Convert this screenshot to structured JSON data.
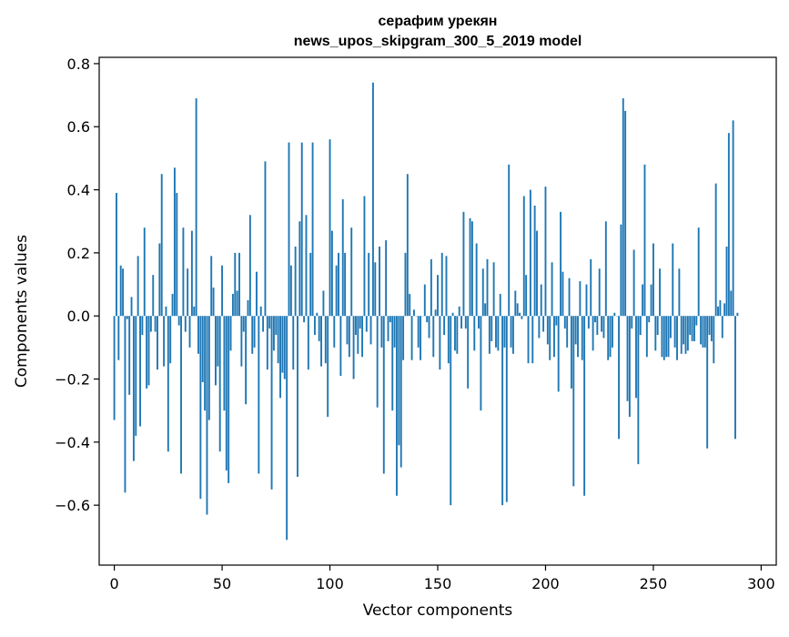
{
  "chart_data": {
    "type": "bar",
    "title_line1": "серафим урекян",
    "title_line2": "news_upos_skipgram_300_5_2019 model",
    "xlabel": "Vector components",
    "ylabel": "Components values",
    "xlim": [
      -7,
      307
    ],
    "ylim": [
      -0.79,
      0.82
    ],
    "x_ticks": [
      0,
      50,
      100,
      150,
      200,
      250,
      300
    ],
    "x_tick_labels": [
      "0",
      "50",
      "100",
      "150",
      "200",
      "250",
      "300"
    ],
    "y_ticks": [
      -0.6,
      -0.4,
      -0.2,
      0.0,
      0.2,
      0.4,
      0.6,
      0.8
    ],
    "y_tick_labels": [
      "−0.6",
      "−0.4",
      "−0.2",
      "0.0",
      "0.2",
      "0.4",
      "0.6",
      "0.8"
    ],
    "bar_color": "#1f77b4",
    "series": [
      {
        "name": "components",
        "values": [
          -0.33,
          0.39,
          -0.14,
          0.16,
          0.15,
          -0.56,
          -0.01,
          -0.25,
          0.06,
          -0.46,
          -0.38,
          0.19,
          -0.35,
          -0.06,
          0.28,
          -0.23,
          -0.22,
          -0.05,
          0.13,
          -0.05,
          -0.17,
          0.23,
          0.45,
          -0.16,
          0.03,
          -0.43,
          -0.15,
          0.07,
          0.47,
          0.39,
          -0.03,
          -0.5,
          0.28,
          -0.05,
          0.15,
          -0.1,
          0.27,
          0.03,
          0.69,
          -0.12,
          -0.58,
          -0.21,
          -0.3,
          -0.63,
          -0.33,
          0.19,
          0.09,
          -0.22,
          -0.16,
          -0.43,
          0.16,
          -0.3,
          -0.49,
          -0.53,
          -0.11,
          0.07,
          0.2,
          0.08,
          0.2,
          -0.16,
          -0.05,
          -0.28,
          0.05,
          0.32,
          -0.12,
          -0.1,
          0.14,
          -0.5,
          0.03,
          -0.05,
          0.49,
          -0.17,
          -0.04,
          -0.55,
          -0.11,
          -0.06,
          -0.15,
          -0.26,
          -0.18,
          -0.2,
          -0.71,
          0.55,
          0.16,
          -0.17,
          0.22,
          -0.51,
          0.3,
          0.55,
          -0.02,
          0.32,
          -0.17,
          0.2,
          0.55,
          -0.06,
          0.01,
          -0.08,
          -0.16,
          0.08,
          -0.15,
          -0.32,
          0.56,
          0.27,
          -0.1,
          0.16,
          0.2,
          -0.19,
          0.37,
          0.2,
          -0.09,
          -0.13,
          0.28,
          -0.2,
          -0.06,
          -0.12,
          -0.04,
          -0.13,
          0.38,
          -0.05,
          0.2,
          -0.09,
          0.74,
          0.17,
          -0.29,
          0.22,
          -0.1,
          -0.5,
          0.24,
          -0.08,
          -0.02,
          -0.3,
          -0.1,
          -0.57,
          -0.41,
          -0.48,
          -0.14,
          0.2,
          0.45,
          0.07,
          -0.14,
          0.02,
          0.0,
          -0.1,
          -0.14,
          0.0,
          0.1,
          -0.02,
          -0.07,
          0.18,
          -0.13,
          0.02,
          0.13,
          -0.17,
          0.2,
          -0.06,
          0.19,
          -0.15,
          -0.6,
          0.01,
          -0.11,
          -0.12,
          0.03,
          -0.04,
          0.33,
          -0.04,
          -0.23,
          0.31,
          0.3,
          -0.11,
          0.23,
          -0.04,
          -0.3,
          0.15,
          0.04,
          0.18,
          -0.12,
          -0.08,
          0.17,
          -0.1,
          -0.11,
          0.07,
          -0.6,
          -0.1,
          -0.59,
          0.48,
          -0.1,
          -0.12,
          0.08,
          0.04,
          0.01,
          -0.01,
          0.38,
          0.13,
          -0.15,
          0.4,
          -0.15,
          0.35,
          0.27,
          -0.07,
          0.1,
          -0.05,
          0.41,
          -0.09,
          -0.14,
          0.17,
          -0.13,
          -0.03,
          -0.24,
          0.33,
          0.14,
          -0.04,
          -0.1,
          0.12,
          -0.23,
          -0.54,
          -0.09,
          -0.13,
          0.11,
          -0.14,
          -0.57,
          0.1,
          -0.04,
          0.18,
          -0.11,
          -0.02,
          -0.06,
          0.15,
          -0.05,
          -0.07,
          0.3,
          -0.14,
          -0.13,
          -0.1,
          0.01,
          0.0,
          -0.39,
          0.29,
          0.69,
          0.65,
          -0.27,
          -0.32,
          -0.04,
          0.21,
          -0.26,
          -0.47,
          -0.06,
          0.1,
          0.48,
          -0.13,
          -0.02,
          0.1,
          0.23,
          -0.11,
          -0.06,
          0.15,
          -0.13,
          -0.14,
          -0.13,
          -0.13,
          -0.07,
          0.23,
          -0.1,
          -0.14,
          0.15,
          -0.12,
          -0.09,
          -0.12,
          -0.11,
          -0.06,
          -0.08,
          -0.08,
          -0.03,
          0.28,
          -0.09,
          -0.1,
          -0.1,
          -0.42,
          -0.06,
          -0.08,
          -0.15,
          0.42,
          0.03,
          0.05,
          -0.07,
          0.04,
          0.22,
          0.58,
          0.08,
          0.62,
          -0.39,
          0.01
        ]
      }
    ]
  }
}
